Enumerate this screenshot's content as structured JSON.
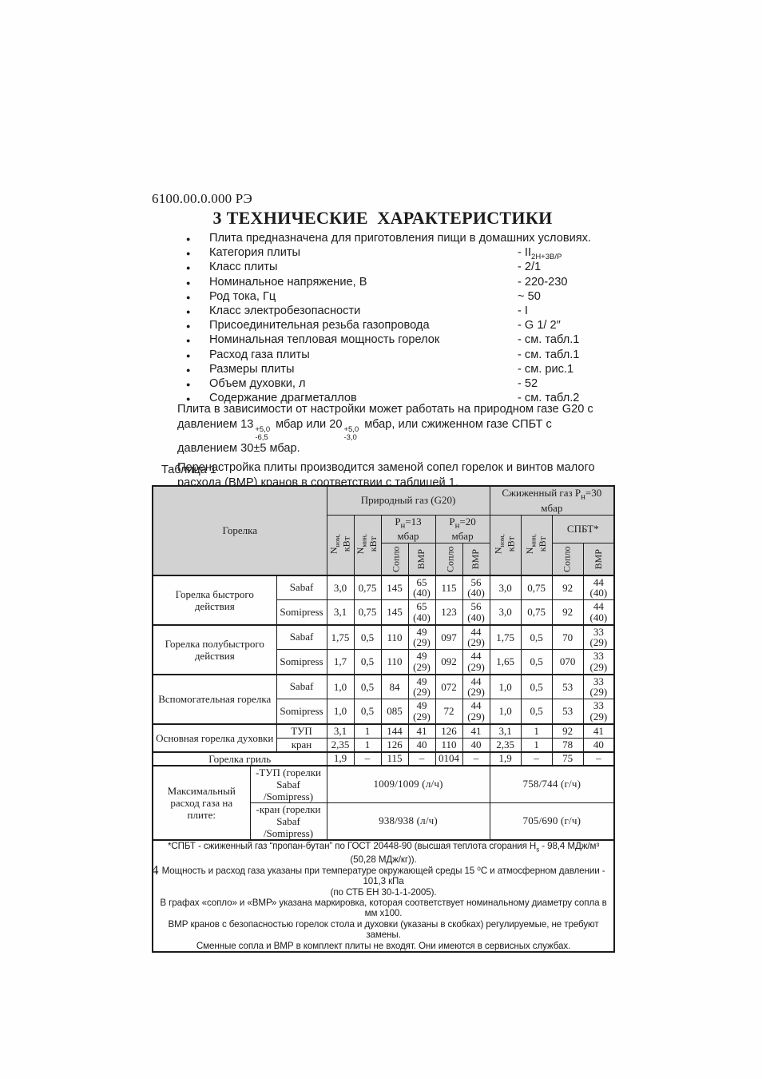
{
  "colors": {
    "header_bg": "#d2d2d2",
    "ink": "#1c1c1c"
  },
  "doc_number": "6100.00.0.000 РЭ",
  "title": "3 ТЕХНИЧЕСКИЕ  ХАРАКТЕРИСТИКИ",
  "page_number": "4",
  "specs": {
    "bullet_glyph": "●",
    "intro": "Плита предназначена для приготовления пищи в домашних условиях.",
    "items": [
      {
        "label": "Категория плиты",
        "value_rich": [
          {
            "t": "- II"
          },
          {
            "sub": "2H+3B/P"
          }
        ]
      },
      {
        "label": "Класс плиты",
        "value": "- 2/1"
      },
      {
        "label": "Номинальное напряжение, В",
        "value": "- 220-230"
      },
      {
        "label": "Род тока, Гц",
        "value": "~ 50"
      },
      {
        "label": "Класс электробезопасности",
        "value": "- I"
      },
      {
        "label": "Присоединительная резьба газопровода",
        "value": "- G 1/ 2″"
      },
      {
        "label": "Номинальная тепловая мощность горелок",
        "value": "- см. табл.1"
      },
      {
        "label": "Расход газа плиты",
        "value": "- см. табл.1"
      },
      {
        "label": "Размеры плиты",
        "value": "- см. рис.1"
      },
      {
        "label": "Объем духовки, л",
        "value": "- 52"
      },
      {
        "label": "Содержание драгметаллов",
        "value": "- см. табл.2"
      }
    ]
  },
  "paragraphs": {
    "p1": [
      {
        "t": "Плита в зависимости от настройки может работать на природном газе G20 с давлением 13"
      },
      {
        "stack": [
          "+5,0",
          "-6,5"
        ]
      },
      {
        "t": " мбар или 20"
      },
      {
        "stack": [
          "+5,0",
          "-3,0"
        ]
      },
      {
        "t": " мбар, или сжиженном газе СПБТ с давлением 30±5 мбар."
      }
    ],
    "p2": "Перенастройка плиты производится заменой сопел горелок и винтов малого расхода (ВМР) кранов в соответствии с таблицей 1."
  },
  "table": {
    "caption": "Таблица 1",
    "header": {
      "burner": "Горелка",
      "natural_gas": "Природный газ (G20)",
      "lpg": [
        {
          "t": "Сжиженный газ Р"
        },
        {
          "sub": "н"
        },
        {
          "t": "=30 мбар"
        }
      ],
      "p13": [
        {
          "t": "Р"
        },
        {
          "sub": "н"
        },
        {
          "t": "=13 мбар"
        }
      ],
      "p20": [
        {
          "t": "Р"
        },
        {
          "sub": "н"
        },
        {
          "t": "=20 мбар"
        }
      ],
      "spbt": "СПБТ*",
      "n_nom": [
        {
          "t": "N"
        },
        {
          "sub": "ном,"
        }
      ],
      "n_min": [
        {
          "t": "N"
        },
        {
          "sub": "мин,"
        }
      ],
      "kw": "кВт",
      "nozzle": "Сопло",
      "vmr": "ВМР"
    },
    "groups": [
      {
        "name": "Горелка быстрого действия",
        "rows": [
          {
            "brand": "Sabaf",
            "v": [
              "3,0",
              "0,75",
              "145",
              "65\n(40)",
              "115",
              "56\n(40)",
              "3,0",
              "0,75",
              "92",
              "44\n(40)"
            ]
          },
          {
            "brand": "Somipress",
            "v": [
              "3,1",
              "0,75",
              "145",
              "65\n(40)",
              "123",
              "56\n(40)",
              "3,0",
              "0,75",
              "92",
              "44\n(40)"
            ]
          }
        ]
      },
      {
        "name": "Горелка полубыстрого действия",
        "rows": [
          {
            "brand": "Sabaf",
            "v": [
              "1,75",
              "0,5",
              "110",
              "49\n(29)",
              "097",
              "44\n(29)",
              "1,75",
              "0,5",
              "70",
              "33\n(29)"
            ]
          },
          {
            "brand": "Somipress",
            "v": [
              "1,7",
              "0,5",
              "110",
              "49\n(29)",
              "092",
              "44\n(29)",
              "1,65",
              "0,5",
              "070",
              "33\n(29)"
            ]
          }
        ]
      },
      {
        "name": "Вспомогательная горелка",
        "rows": [
          {
            "brand": "Sabaf",
            "v": [
              "1,0",
              "0,5",
              "84",
              "49\n(29)",
              "072",
              "44\n(29)",
              "1,0",
              "0,5",
              "53",
              "33\n(29)"
            ]
          },
          {
            "brand": "Somipress",
            "v": [
              "1,0",
              "0,5",
              "085",
              "49\n(29)",
              "72",
              "44\n(29)",
              "1,0",
              "0,5",
              "53",
              "33\n(29)"
            ]
          }
        ]
      },
      {
        "name": "Основная горелка духовки",
        "rows": [
          {
            "brand": "ТУП",
            "v": [
              "3,1",
              "1",
              "144",
              "41",
              "126",
              "41",
              "3,1",
              "1",
              "92",
              "41"
            ]
          },
          {
            "brand": "кран",
            "v": [
              "2,35",
              "1",
              "126",
              "40",
              "110",
              "40",
              "2,35",
              "1",
              "78",
              "40"
            ]
          }
        ]
      }
    ],
    "grill": {
      "name": "Горелка гриль",
      "v": [
        "1,9",
        "–",
        "115",
        "–",
        "0104",
        "–",
        "1,9",
        "–",
        "75",
        "–"
      ]
    },
    "max_flow": {
      "label": "Максимальный расход газа на плите:",
      "rows": [
        {
          "sub_label": "-ТУП (горелки\nSabaf /Somipress)",
          "natural": "1009/1009 (л/ч)",
          "lpg": "758/744 (г/ч)"
        },
        {
          "sub_label": "-кран (горелки\nSabaf /Somipress)",
          "natural": "938/938 (л/ч)",
          "lpg": "705/690 (г/ч)"
        }
      ]
    },
    "footnote": [
      [
        {
          "t": "*СПБТ - сжиженный газ “пропан-бутан” по ГОСТ 20448-90 (высшая теплота сгорания Н"
        },
        {
          "sub": "s"
        },
        {
          "t": " - 98,4 МДж/м³ (50,28 МДж/кг))."
        }
      ],
      [
        {
          "t": "Мощность и расход газа указаны при температуре окружающей среды 15 ⁰С и атмосферном давлении - 101,3 кПа"
        }
      ],
      [
        {
          "t": "(по СТБ ЕН 30-1-1-2005)."
        }
      ],
      [
        {
          "t": "В графах «сопло» и «ВМР» указана маркировка, которая соответствует номинальному диаметру сопла в мм х100."
        }
      ],
      [
        {
          "t": "ВМР кранов с безопасностью горелок стола и духовки (указаны в скобках) регулируемые, не требуют замены."
        }
      ],
      [
        {
          "t": "Сменные сопла и ВМР в комплект плиты не входят. Они имеются в сервисных службах."
        }
      ]
    ]
  }
}
